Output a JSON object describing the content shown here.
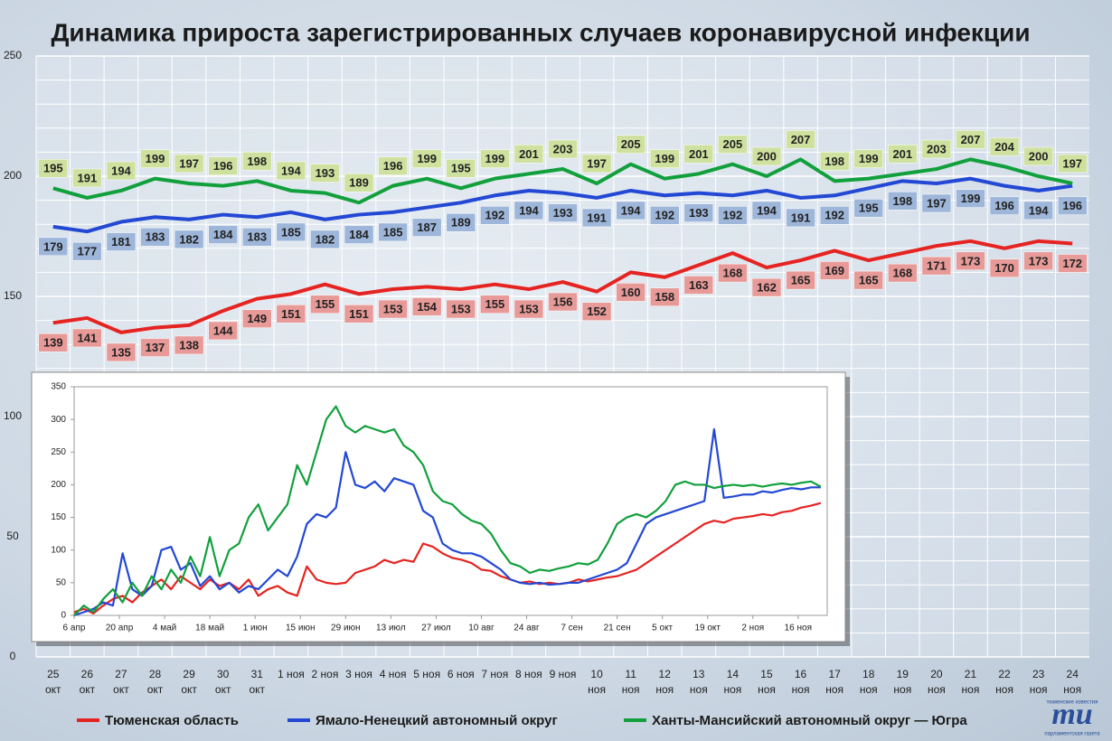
{
  "chart_data": [
    {
      "type": "line",
      "title": "Динамика прироста зарегистрированных случаев коронавирусной инфекции",
      "categories": [
        "25\nокт",
        "26\nокт",
        "27\nокт",
        "28\nокт",
        "29\nокт",
        "30\nокт",
        "31\nокт",
        "1 ноя",
        "2 ноя",
        "3 ноя",
        "4 ноя",
        "5 ноя",
        "6 ноя",
        "7 ноя",
        "8 ноя",
        "9 ноя",
        "10\nноя",
        "11\nноя",
        "12\nноя",
        "13\nноя",
        "14\nноя",
        "15\nноя",
        "16\nноя",
        "17\nноя",
        "18\nноя",
        "19\nноя",
        "20\nноя",
        "21\nноя",
        "22\nноя",
        "23\nноя",
        "24\nноя"
      ],
      "series": [
        {
          "name": "Тюменская область",
          "color": "#e52421",
          "values": [
            139,
            141,
            135,
            137,
            138,
            144,
            149,
            151,
            155,
            151,
            153,
            154,
            153,
            155,
            153,
            156,
            152,
            160,
            158,
            163,
            168,
            162,
            165,
            169,
            165,
            168,
            171,
            173,
            170,
            173,
            172
          ]
        },
        {
          "name": "Ямало-Ненецкий автономный округ",
          "color": "#2348d4",
          "values": [
            179,
            177,
            181,
            183,
            182,
            184,
            183,
            185,
            182,
            184,
            185,
            187,
            189,
            192,
            194,
            193,
            191,
            194,
            192,
            193,
            192,
            194,
            191,
            192,
            195,
            198,
            197,
            199,
            196,
            194,
            196
          ]
        },
        {
          "name": "Ханты-Мансийский автономный округ — Югра",
          "color": "#11a03c",
          "values": [
            195,
            191,
            194,
            199,
            197,
            196,
            198,
            194,
            193,
            189,
            196,
            199,
            195,
            199,
            201,
            203,
            197,
            205,
            199,
            201,
            205,
            200,
            207,
            198,
            199,
            201,
            203,
            207,
            204,
            200,
            197
          ]
        }
      ],
      "ylim": [
        0,
        250
      ],
      "yticks": [
        0,
        50,
        100,
        150,
        200,
        250
      ],
      "minor_yticks": [
        10,
        20,
        30,
        40,
        60,
        70,
        80,
        90,
        110,
        120,
        130,
        140,
        160,
        170,
        180,
        190,
        210,
        220,
        230,
        240
      ],
      "grid": true,
      "legend": "bottom"
    },
    {
      "type": "line",
      "x": [
        0,
        3,
        6,
        9,
        12,
        15,
        18,
        21,
        24,
        27,
        30,
        33,
        36,
        39,
        42,
        45,
        48,
        51,
        54,
        57,
        60,
        63,
        66,
        69,
        72,
        75,
        78,
        81,
        84,
        87,
        90,
        93,
        96,
        99,
        102,
        105,
        108,
        111,
        114,
        117,
        120,
        123,
        126,
        129,
        132,
        135,
        138,
        141,
        144,
        147,
        150,
        153,
        156,
        159,
        162,
        165,
        168,
        171,
        174,
        177,
        180,
        183,
        186,
        189,
        192,
        195,
        198,
        201,
        204,
        207,
        210,
        213,
        216,
        219,
        222,
        225,
        228,
        231
      ],
      "series": [
        {
          "color": "#e52421",
          "values": [
            5,
            10,
            3,
            15,
            25,
            30,
            20,
            35,
            45,
            55,
            40,
            60,
            50,
            40,
            55,
            45,
            50,
            40,
            55,
            30,
            40,
            45,
            35,
            30,
            75,
            55,
            50,
            48,
            50,
            65,
            70,
            75,
            85,
            80,
            85,
            82,
            110,
            105,
            95,
            88,
            85,
            80,
            70,
            68,
            60,
            55,
            50,
            52,
            48,
            50,
            48,
            50,
            55,
            52,
            55,
            58,
            60,
            65,
            70,
            80,
            90,
            100,
            110,
            120,
            130,
            140,
            145,
            142,
            148,
            150,
            152,
            155,
            153,
            158,
            160,
            165,
            168,
            172
          ]
        },
        {
          "color": "#2348d4",
          "values": [
            0,
            5,
            10,
            20,
            15,
            95,
            40,
            30,
            45,
            100,
            105,
            70,
            80,
            45,
            60,
            40,
            50,
            35,
            45,
            40,
            55,
            70,
            60,
            90,
            140,
            155,
            150,
            165,
            250,
            200,
            195,
            205,
            190,
            210,
            205,
            200,
            160,
            150,
            110,
            100,
            95,
            95,
            90,
            80,
            70,
            55,
            50,
            48,
            50,
            47,
            48,
            50,
            50,
            55,
            60,
            65,
            70,
            80,
            110,
            140,
            150,
            155,
            160,
            165,
            170,
            175,
            285,
            180,
            182,
            185,
            185,
            190,
            188,
            192,
            195,
            193,
            196,
            196
          ]
        },
        {
          "color": "#11a03c",
          "values": [
            0,
            15,
            5,
            25,
            40,
            20,
            50,
            30,
            60,
            40,
            70,
            50,
            90,
            60,
            120,
            60,
            100,
            110,
            150,
            170,
            130,
            150,
            170,
            230,
            200,
            250,
            300,
            320,
            290,
            280,
            290,
            285,
            280,
            285,
            260,
            250,
            230,
            190,
            175,
            170,
            155,
            145,
            140,
            125,
            100,
            80,
            75,
            65,
            70,
            68,
            72,
            75,
            80,
            78,
            85,
            110,
            140,
            150,
            155,
            150,
            160,
            175,
            200,
            205,
            200,
            200,
            195,
            198,
            200,
            198,
            200,
            197,
            200,
            202,
            200,
            203,
            205,
            197
          ]
        }
      ],
      "xlim": [
        0,
        233
      ],
      "xticks": [
        {
          "value": 0,
          "label": "6 апр"
        },
        {
          "value": 14,
          "label": "20 апр"
        },
        {
          "value": 28,
          "label": "4 май"
        },
        {
          "value": 42,
          "label": "18 май"
        },
        {
          "value": 56,
          "label": "1 июн"
        },
        {
          "value": 70,
          "label": "15 июн"
        },
        {
          "value": 84,
          "label": "29 июн"
        },
        {
          "value": 98,
          "label": "13 июл"
        },
        {
          "value": 112,
          "label": "27 июл"
        },
        {
          "value": 126,
          "label": "10 авг"
        },
        {
          "value": 140,
          "label": "24 авг"
        },
        {
          "value": 154,
          "label": "7 сен"
        },
        {
          "value": 168,
          "label": "21 сен"
        },
        {
          "value": 182,
          "label": "5 окт"
        },
        {
          "value": 196,
          "label": "19 окт"
        },
        {
          "value": 210,
          "label": "2 ноя"
        },
        {
          "value": 224,
          "label": "16 ноя"
        }
      ],
      "ylim": [
        0,
        350
      ],
      "yticks": [
        0,
        50,
        100,
        150,
        200,
        250,
        300,
        350
      ]
    }
  ],
  "logo": {
    "mark": "mu",
    "top": "тюменские известия",
    "bottom": "парламентская газета"
  }
}
